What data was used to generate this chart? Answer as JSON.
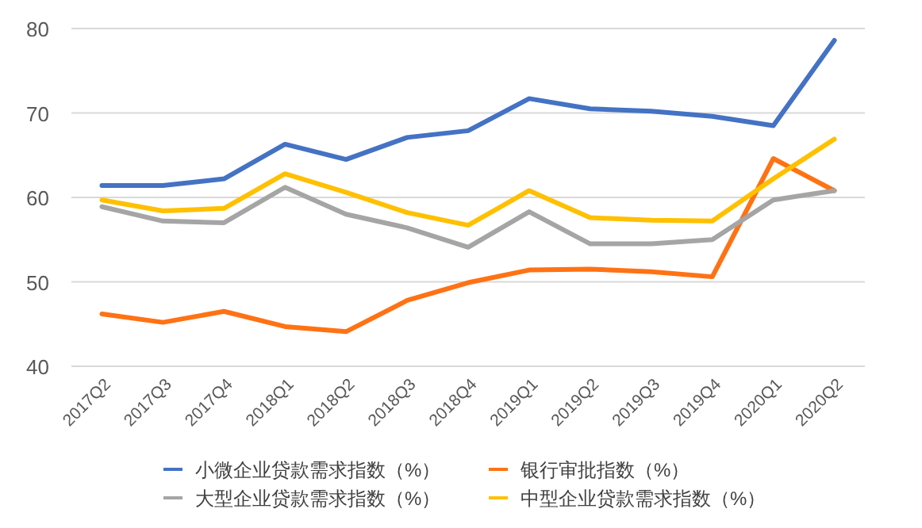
{
  "chart_data": {
    "type": "line",
    "categories": [
      "2017Q2",
      "2017Q3",
      "2017Q4",
      "2018Q1",
      "2018Q2",
      "2018Q3",
      "2018Q4",
      "2019Q1",
      "2019Q2",
      "2019Q3",
      "2019Q4",
      "2020Q1",
      "2020Q2"
    ],
    "series": [
      {
        "name": "小微企业贷款需求指数（%）",
        "color": "#4472c4",
        "values": [
          61.4,
          61.4,
          62.2,
          66.3,
          64.5,
          67.1,
          67.9,
          71.7,
          70.5,
          70.2,
          69.6,
          68.5,
          78.6
        ]
      },
      {
        "name": "银行审批指数（%）",
        "color": "#ff7214",
        "values": [
          46.2,
          45.2,
          46.5,
          44.7,
          44.1,
          47.8,
          49.9,
          51.4,
          51.5,
          51.2,
          50.6,
          64.6,
          60.8
        ]
      },
      {
        "name": "大型企业贷款需求指数（%）",
        "color": "#a5a5a5",
        "values": [
          58.9,
          57.2,
          57.0,
          61.2,
          58.0,
          56.4,
          54.1,
          58.3,
          54.5,
          54.5,
          55.0,
          59.7,
          60.8
        ]
      },
      {
        "name": "中型企业贷款需求指数（%）",
        "color": "#ffc000",
        "values": [
          59.7,
          58.4,
          58.7,
          62.8,
          60.6,
          58.2,
          56.7,
          60.8,
          57.6,
          57.3,
          57.2,
          62.2,
          66.9
        ]
      }
    ],
    "ylim": [
      40,
      80
    ],
    "yticks": [
      40,
      50,
      60,
      70,
      80
    ],
    "grid": "y",
    "legend": "bottom",
    "marker": "none",
    "line_style": "solid"
  }
}
